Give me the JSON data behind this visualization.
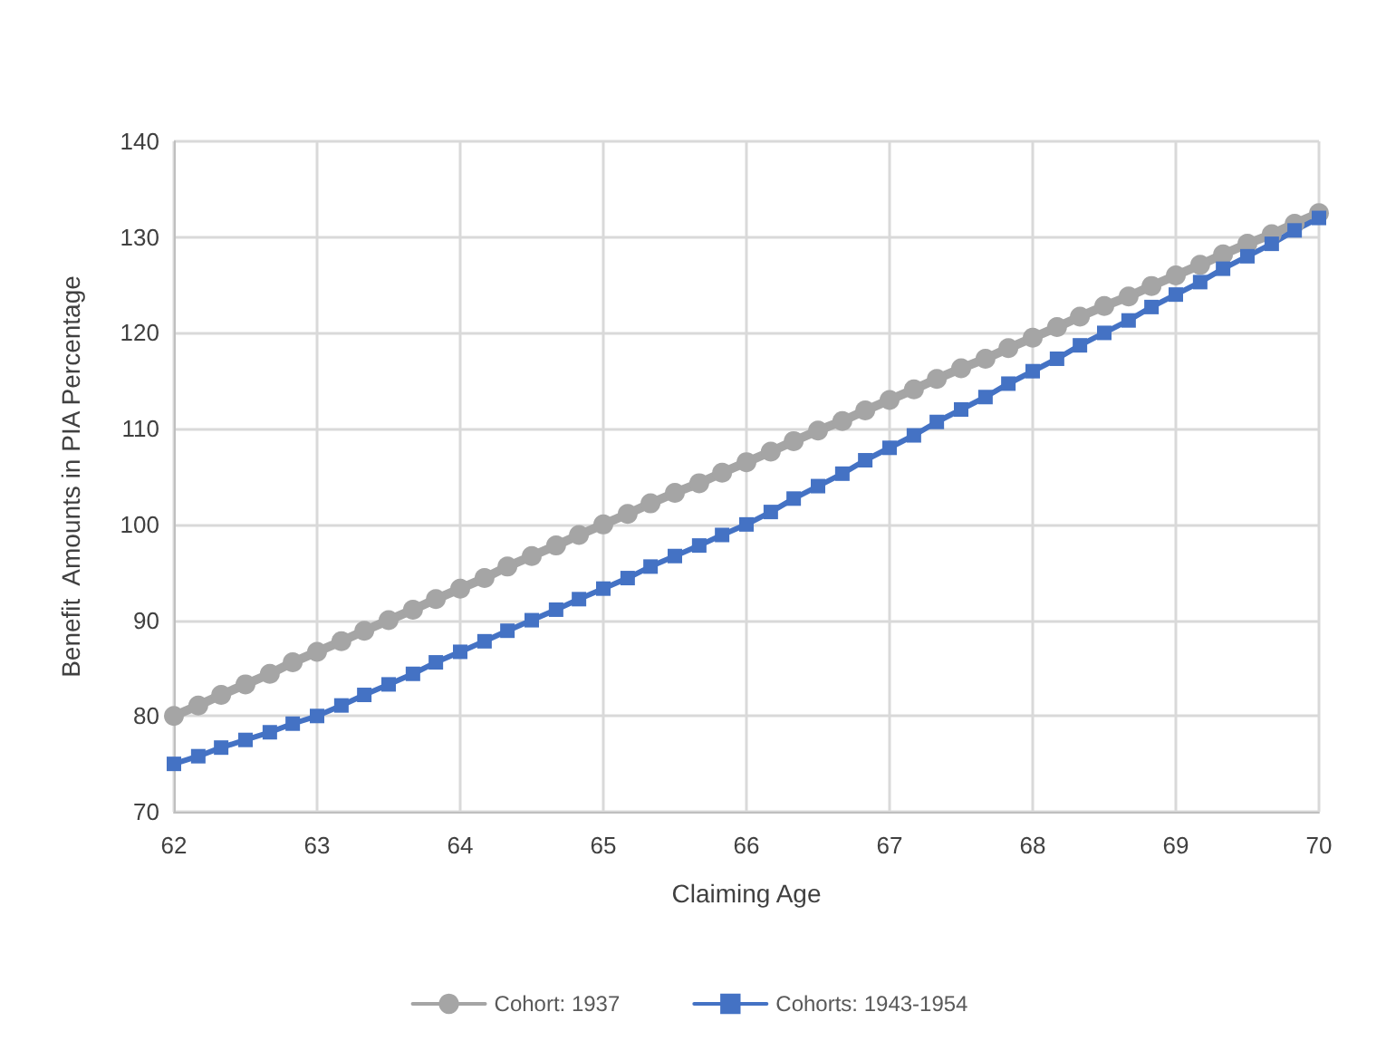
{
  "chart_data": {
    "type": "line",
    "xlabel": "Claiming Age",
    "ylabel": "Benefit  Amounts in PIA Percentage",
    "x": [
      62,
      62.17,
      62.33,
      62.5,
      62.67,
      62.83,
      63,
      63.17,
      63.33,
      63.5,
      63.67,
      63.83,
      64,
      64.17,
      64.33,
      64.5,
      64.67,
      64.83,
      65,
      65.17,
      65.33,
      65.5,
      65.67,
      65.83,
      66,
      66.17,
      66.33,
      66.5,
      66.67,
      66.83,
      67,
      67.17,
      67.33,
      67.5,
      67.67,
      67.83,
      68,
      68.17,
      68.33,
      68.5,
      68.67,
      68.83,
      69,
      69.17,
      69.33,
      69.5,
      69.67,
      69.83,
      70
    ],
    "series": [
      {
        "name": "Cohort: 1937",
        "color": "#a5a5a5",
        "marker": "circle",
        "values": [
          80,
          81.1,
          82.2,
          83.3,
          84.4,
          85.6,
          86.7,
          87.8,
          88.9,
          90,
          91.1,
          92.2,
          93.3,
          94.4,
          95.6,
          96.7,
          97.8,
          98.9,
          100,
          101.1,
          102.2,
          103.3,
          104.3,
          105.4,
          106.5,
          107.6,
          108.7,
          109.8,
          110.8,
          111.9,
          113,
          114.1,
          115.2,
          116.3,
          117.3,
          118.4,
          119.5,
          120.6,
          121.7,
          122.8,
          123.8,
          124.9,
          126,
          127.1,
          128.2,
          129.3,
          130.3,
          131.4,
          132.5
        ]
      },
      {
        "name": "Cohorts: 1943-1954",
        "color": "#4472c4",
        "marker": "square",
        "values": [
          75,
          75.8,
          76.7,
          77.5,
          78.3,
          79.2,
          80,
          81.1,
          82.2,
          83.3,
          84.4,
          85.6,
          86.7,
          87.8,
          88.9,
          90,
          91.1,
          92.2,
          93.3,
          94.4,
          95.6,
          96.7,
          97.8,
          98.9,
          100,
          101.3,
          102.7,
          104,
          105.3,
          106.7,
          108,
          109.3,
          110.7,
          112,
          113.3,
          114.7,
          116,
          117.3,
          118.7,
          120,
          121.3,
          122.7,
          124,
          125.3,
          126.7,
          128,
          129.3,
          130.7,
          132
        ]
      }
    ],
    "xlim": [
      62,
      70
    ],
    "xticks": [
      62,
      63,
      64,
      65,
      66,
      67,
      68,
      69,
      70
    ],
    "ylim": [
      70,
      140
    ],
    "yticks": [
      70,
      80,
      90,
      100,
      110,
      120,
      130,
      140
    ],
    "grid": true,
    "legend": "bottom",
    "line_style": "solid"
  }
}
